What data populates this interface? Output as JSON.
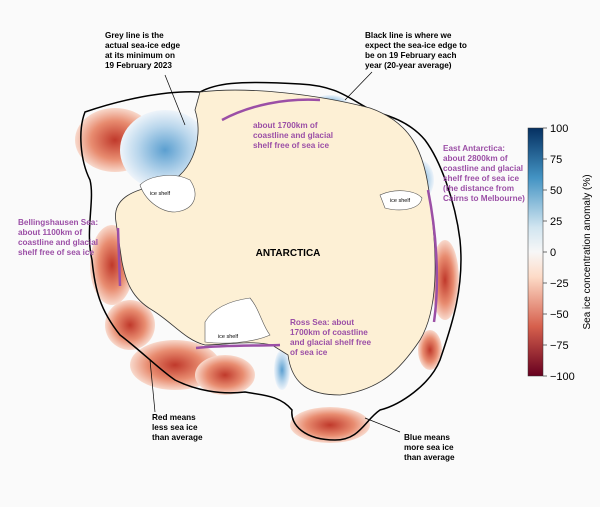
{
  "annotations": [
    {
      "lines": [
        "Grey line is the",
        "actual sea-ice edge",
        "at its minimum on",
        "19 February 2023"
      ]
    },
    {
      "lines": [
        "Black line is where we",
        "expect the sea-ice edge to",
        "be on 19 February each",
        "year (20-year average)"
      ]
    },
    {
      "lines": [
        "about 1700km of",
        "coastline and glacial",
        "shelf free of sea ice"
      ]
    },
    {
      "lines": [
        "East Antarctica:",
        "about 2800km of",
        "coastline and glacial",
        "shelf free of sea ice",
        "(the distance from",
        "Cairns to Melbourne)"
      ]
    },
    {
      "lines": [
        "Bellingshausen Sea:",
        "about 1100km of",
        "coastline and glacial",
        "shelf free of sea ice"
      ]
    },
    {
      "lines": [
        "Ross Sea: about",
        "1700km of coastline",
        "and glacial shelf free",
        "of sea ice"
      ]
    },
    {
      "lines": [
        "Red means",
        "less sea ice",
        "than average"
      ]
    },
    {
      "lines": [
        "Blue means",
        "more sea ice",
        "than average"
      ]
    }
  ],
  "map_label": "ANTARCTICA",
  "shelf_labels": [
    "ice shelf",
    "ice shelf",
    "ice shelf"
  ],
  "colorbar": {
    "label": "Sea ice concentration anomaly (%)",
    "lim": [
      -100,
      100
    ],
    "ticks": [
      100,
      75,
      50,
      25,
      0,
      {
        "value": -25,
        "label": "−25"
      },
      {
        "value": -50,
        "label": "−50"
      },
      {
        "value": -75,
        "label": "−75"
      },
      {
        "value": -100,
        "label": "−100"
      }
    ]
  }
}
